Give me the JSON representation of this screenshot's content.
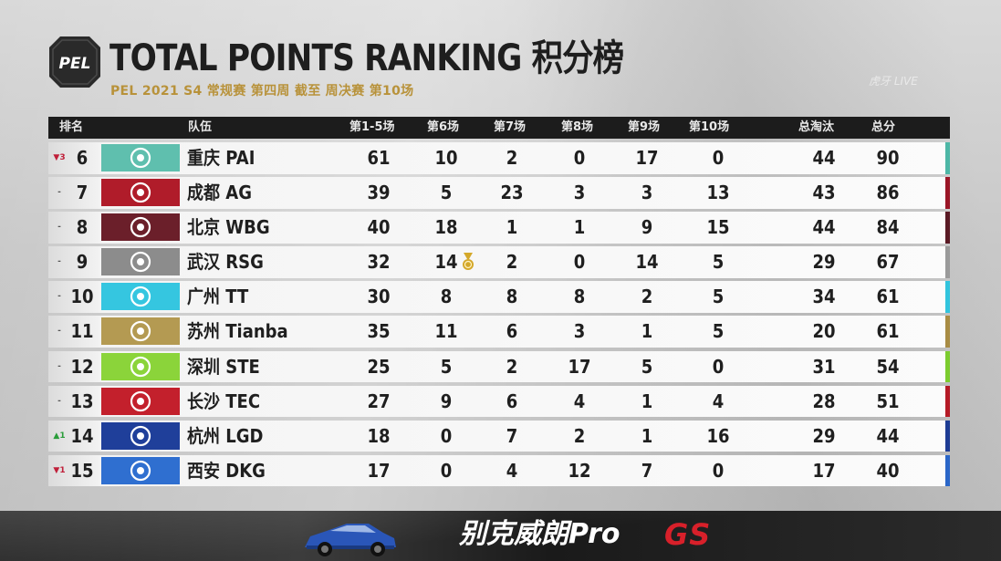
{
  "header": {
    "logo_text": "PEL",
    "title": "TOTAL POINTS RANKING 积分榜",
    "subtitle": "PEL 2021 S4 常规赛 第四周 截至 周决赛 第10场",
    "watermark": "虎牙 LIVE"
  },
  "table": {
    "columns": [
      "排名",
      "队伍",
      "第1-5场",
      "第6场",
      "第7场",
      "第8场",
      "第9场",
      "第10场",
      "总淘汰",
      "总分"
    ],
    "rows": [
      {
        "change": "▼3",
        "change_color": "#c0203a",
        "rank": "6",
        "team": "重庆 PAI",
        "logo_color": "#5fbfae",
        "stripe_color": "#4db7a6",
        "g1_5": "61",
        "g6": "10",
        "g7": "2",
        "g8": "0",
        "g9": "17",
        "g10": "0",
        "kills": "44",
        "total": "90"
      },
      {
        "change": "-",
        "change_color": "#555555",
        "rank": "7",
        "team": "成都 AG",
        "logo_color": "#b01c2a",
        "stripe_color": "#9a1526",
        "g1_5": "39",
        "g6": "5",
        "g7": "23",
        "g8": "3",
        "g9": "3",
        "g10": "13",
        "kills": "43",
        "total": "86"
      },
      {
        "change": "-",
        "change_color": "#555555",
        "rank": "8",
        "team": "北京 WBG",
        "logo_color": "#6b1f2a",
        "stripe_color": "#5a1a24",
        "g1_5": "40",
        "g6": "18",
        "g7": "1",
        "g8": "1",
        "g9": "9",
        "g10": "15",
        "kills": "44",
        "total": "84"
      },
      {
        "change": "-",
        "change_color": "#555555",
        "rank": "9",
        "team": "武汉 RSG",
        "logo_color": "#8c8c8c",
        "stripe_color": "#9a9a9a",
        "g1_5": "32",
        "g6": "14",
        "g7": "2",
        "g8": "0",
        "g9": "14",
        "g10": "5",
        "kills": "29",
        "total": "67",
        "medal": true
      },
      {
        "change": "-",
        "change_color": "#555555",
        "rank": "10",
        "team": "广州 TT",
        "logo_color": "#35c6e0",
        "stripe_color": "#31c4dd",
        "g1_5": "30",
        "g6": "8",
        "g7": "8",
        "g8": "8",
        "g9": "2",
        "g10": "5",
        "kills": "34",
        "total": "61"
      },
      {
        "change": "-",
        "change_color": "#555555",
        "rank": "11",
        "team": "苏州 Tianba",
        "logo_color": "#b49a52",
        "stripe_color": "#a88c44",
        "g1_5": "35",
        "g6": "11",
        "g7": "6",
        "g8": "3",
        "g9": "1",
        "g10": "5",
        "kills": "20",
        "total": "61"
      },
      {
        "change": "-",
        "change_color": "#555555",
        "rank": "12",
        "team": "深圳 STE",
        "logo_color": "#8bd43a",
        "stripe_color": "#7ccc2e",
        "g1_5": "25",
        "g6": "5",
        "g7": "2",
        "g8": "17",
        "g9": "5",
        "g10": "0",
        "kills": "31",
        "total": "54"
      },
      {
        "change": "-",
        "change_color": "#555555",
        "rank": "13",
        "team": "长沙 TEC",
        "logo_color": "#c3202c",
        "stripe_color": "#b51a26",
        "g1_5": "27",
        "g6": "9",
        "g7": "6",
        "g8": "4",
        "g9": "1",
        "g10": "4",
        "kills": "28",
        "total": "51"
      },
      {
        "change": "▲1",
        "change_color": "#2a9d3a",
        "rank": "14",
        "team": "杭州 LGD",
        "logo_color": "#1f3f9a",
        "stripe_color": "#1d3c94",
        "g1_5": "18",
        "g6": "0",
        "g7": "7",
        "g8": "2",
        "g9": "1",
        "g10": "16",
        "kills": "29",
        "total": "44"
      },
      {
        "change": "▼1",
        "change_color": "#c0203a",
        "rank": "15",
        "team": "西安 DKG",
        "logo_color": "#2f6fd0",
        "stripe_color": "#2a66c8",
        "g1_5": "17",
        "g6": "0",
        "g7": "4",
        "g8": "12",
        "g9": "7",
        "g10": "0",
        "kills": "17",
        "total": "40"
      }
    ]
  },
  "banner": {
    "text": "别克威朗Pro",
    "brand": "GS"
  },
  "colors": {
    "header_bg": "#1c1c1c",
    "subtitle": "#b8923a",
    "medal": "#d4a82a"
  }
}
